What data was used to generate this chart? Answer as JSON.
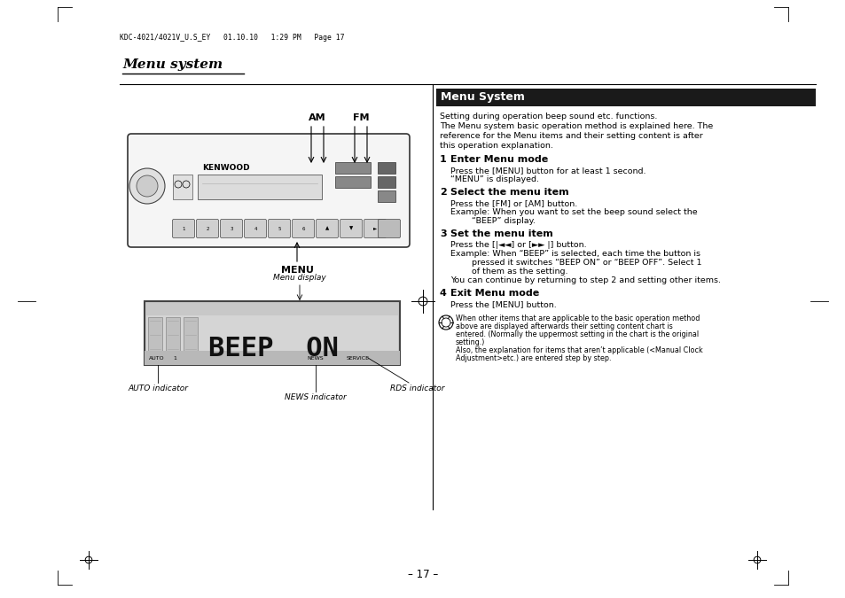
{
  "bg_color": "#ffffff",
  "header_bar_color": "#1a1a1a",
  "header_text": "Menu System",
  "header_text_color": "#ffffff",
  "title_italic": "Menu system",
  "intro_text": "Setting during operation beep sound etc. functions.\nThe Menu system basic operation method is explained here. The\nreference for the Menu items and their setting content is after\nthis operation explanation.",
  "steps": [
    {
      "num": "1",
      "heading": "Enter Menu mode",
      "lines": [
        "Press the [MENU] button for at least 1 second.",
        "“MENU” is displayed."
      ]
    },
    {
      "num": "2",
      "heading": "Select the menu item",
      "lines": [
        "Press the [FM] or [AM] button.",
        "Example: When you want to set the beep sound select the",
        "        “BEEP” display."
      ]
    },
    {
      "num": "3",
      "heading": "Set the menu item",
      "lines": [
        "Press the [|◄◄] or [►► |] button.",
        "Example: When “BEEP” is selected, each time the button is",
        "        pressed it switches “BEEP ON” or “BEEP OFF”. Select 1",
        "        of them as the setting.",
        "You can continue by returning to step 2 and setting other items."
      ]
    },
    {
      "num": "4",
      "heading": "Exit Menu mode",
      "lines": [
        "Press the [MENU] button."
      ]
    }
  ],
  "note_lines": [
    "When other items that are applicable to the basic operation method",
    "above are displayed afterwards their setting content chart is",
    "entered. (Normally the uppermost setting in the chart is the original",
    "setting.)",
    "Also, the explanation for items that aren’t applicable (<Manual Clock",
    "Adjustment>etc.) are entered step by step."
  ],
  "label_am": "AM",
  "label_fm": "FM",
  "label_menu": "MENU",
  "label_auto": "AUTO indicator",
  "label_news": "NEWS indicator",
  "label_rds": "RDS indicator",
  "label_menu_disp": "Menu display",
  "beep_display": "BEEP  ON",
  "page_number": "– 17 –",
  "file_header": "KDC-4021/4021V_U.S_EY   01.10.10   1:29 PM   Page 17"
}
